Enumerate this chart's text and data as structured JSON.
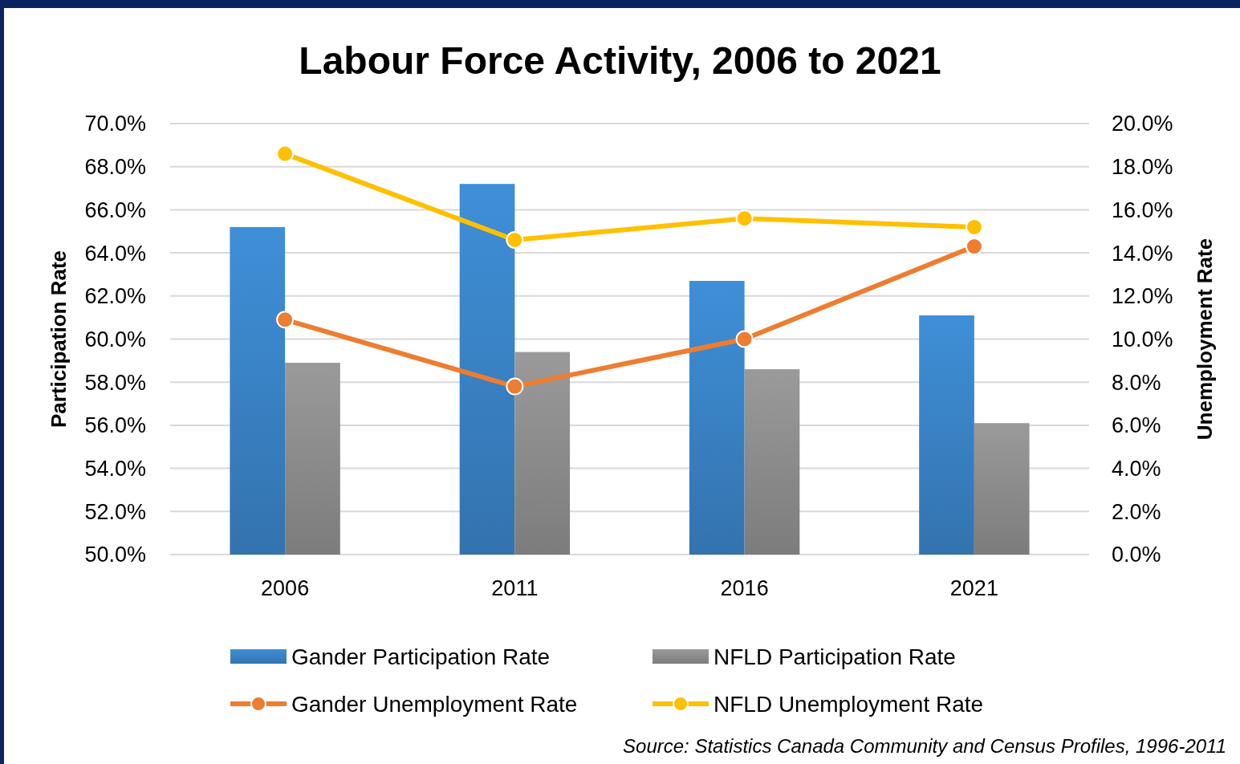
{
  "chart_data": {
    "type": "bar",
    "title": "Labour Force Activity, 2006 to 2021",
    "ylabel": "Participation Rate",
    "y2label": "Unemployment Rate",
    "categories": [
      "2006",
      "2011",
      "2016",
      "2021"
    ],
    "series": [
      {
        "name": "Gander Participation Rate",
        "color": "#3f8fd8",
        "values": [
          65.2,
          67.2,
          62.7,
          61.1
        ]
      },
      {
        "name": "NFLD Participation Rate",
        "color": "#9a9a9a",
        "values": [
          58.9,
          59.4,
          58.6,
          56.1
        ]
      },
      {
        "name": "Gander Unemployment Rate",
        "type": "line",
        "axis": "y2",
        "color": "#ed7d31",
        "values": [
          10.9,
          7.8,
          10.0,
          14.3
        ]
      },
      {
        "name": "NFLD Unemployment Rate",
        "type": "line",
        "axis": "y2",
        "color": "#ffc000",
        "values": [
          18.6,
          14.6,
          15.6,
          15.2
        ]
      }
    ],
    "ylim": [
      50,
      70
    ],
    "yticks": [
      {
        "value": 50,
        "label": "50.0%"
      },
      {
        "value": 52,
        "label": "52.0%"
      },
      {
        "value": 54,
        "label": "54.0%"
      },
      {
        "value": 56,
        "label": "56.0%"
      },
      {
        "value": 58,
        "label": "58.0%"
      },
      {
        "value": 60,
        "label": "60.0%"
      },
      {
        "value": 62,
        "label": "62.0%"
      },
      {
        "value": 64,
        "label": "64.0%"
      },
      {
        "value": 66,
        "label": "66.0%"
      },
      {
        "value": 68,
        "label": "68.0%"
      },
      {
        "value": 70,
        "label": "70.0%"
      }
    ],
    "y2lim": [
      0,
      20
    ],
    "y2ticks": [
      {
        "value": 0,
        "label": "0.0%"
      },
      {
        "value": 2,
        "label": "2.0%"
      },
      {
        "value": 4,
        "label": "4.0%"
      },
      {
        "value": 6,
        "label": "6.0%"
      },
      {
        "value": 8,
        "label": "8.0%"
      },
      {
        "value": 10,
        "label": "10.0%"
      },
      {
        "value": 12,
        "label": "12.0%"
      },
      {
        "value": 14,
        "label": "14.0%"
      },
      {
        "value": 16,
        "label": "16.0%"
      },
      {
        "value": 18,
        "label": "18.0%"
      },
      {
        "value": 20,
        "label": "20.0%"
      }
    ],
    "grid": "y",
    "legend": "bottom",
    "marker": "circle",
    "line_style": "solid",
    "annotations": [
      "Source: Statistics Canada Community and Census Profiles, 1996-2011"
    ]
  }
}
